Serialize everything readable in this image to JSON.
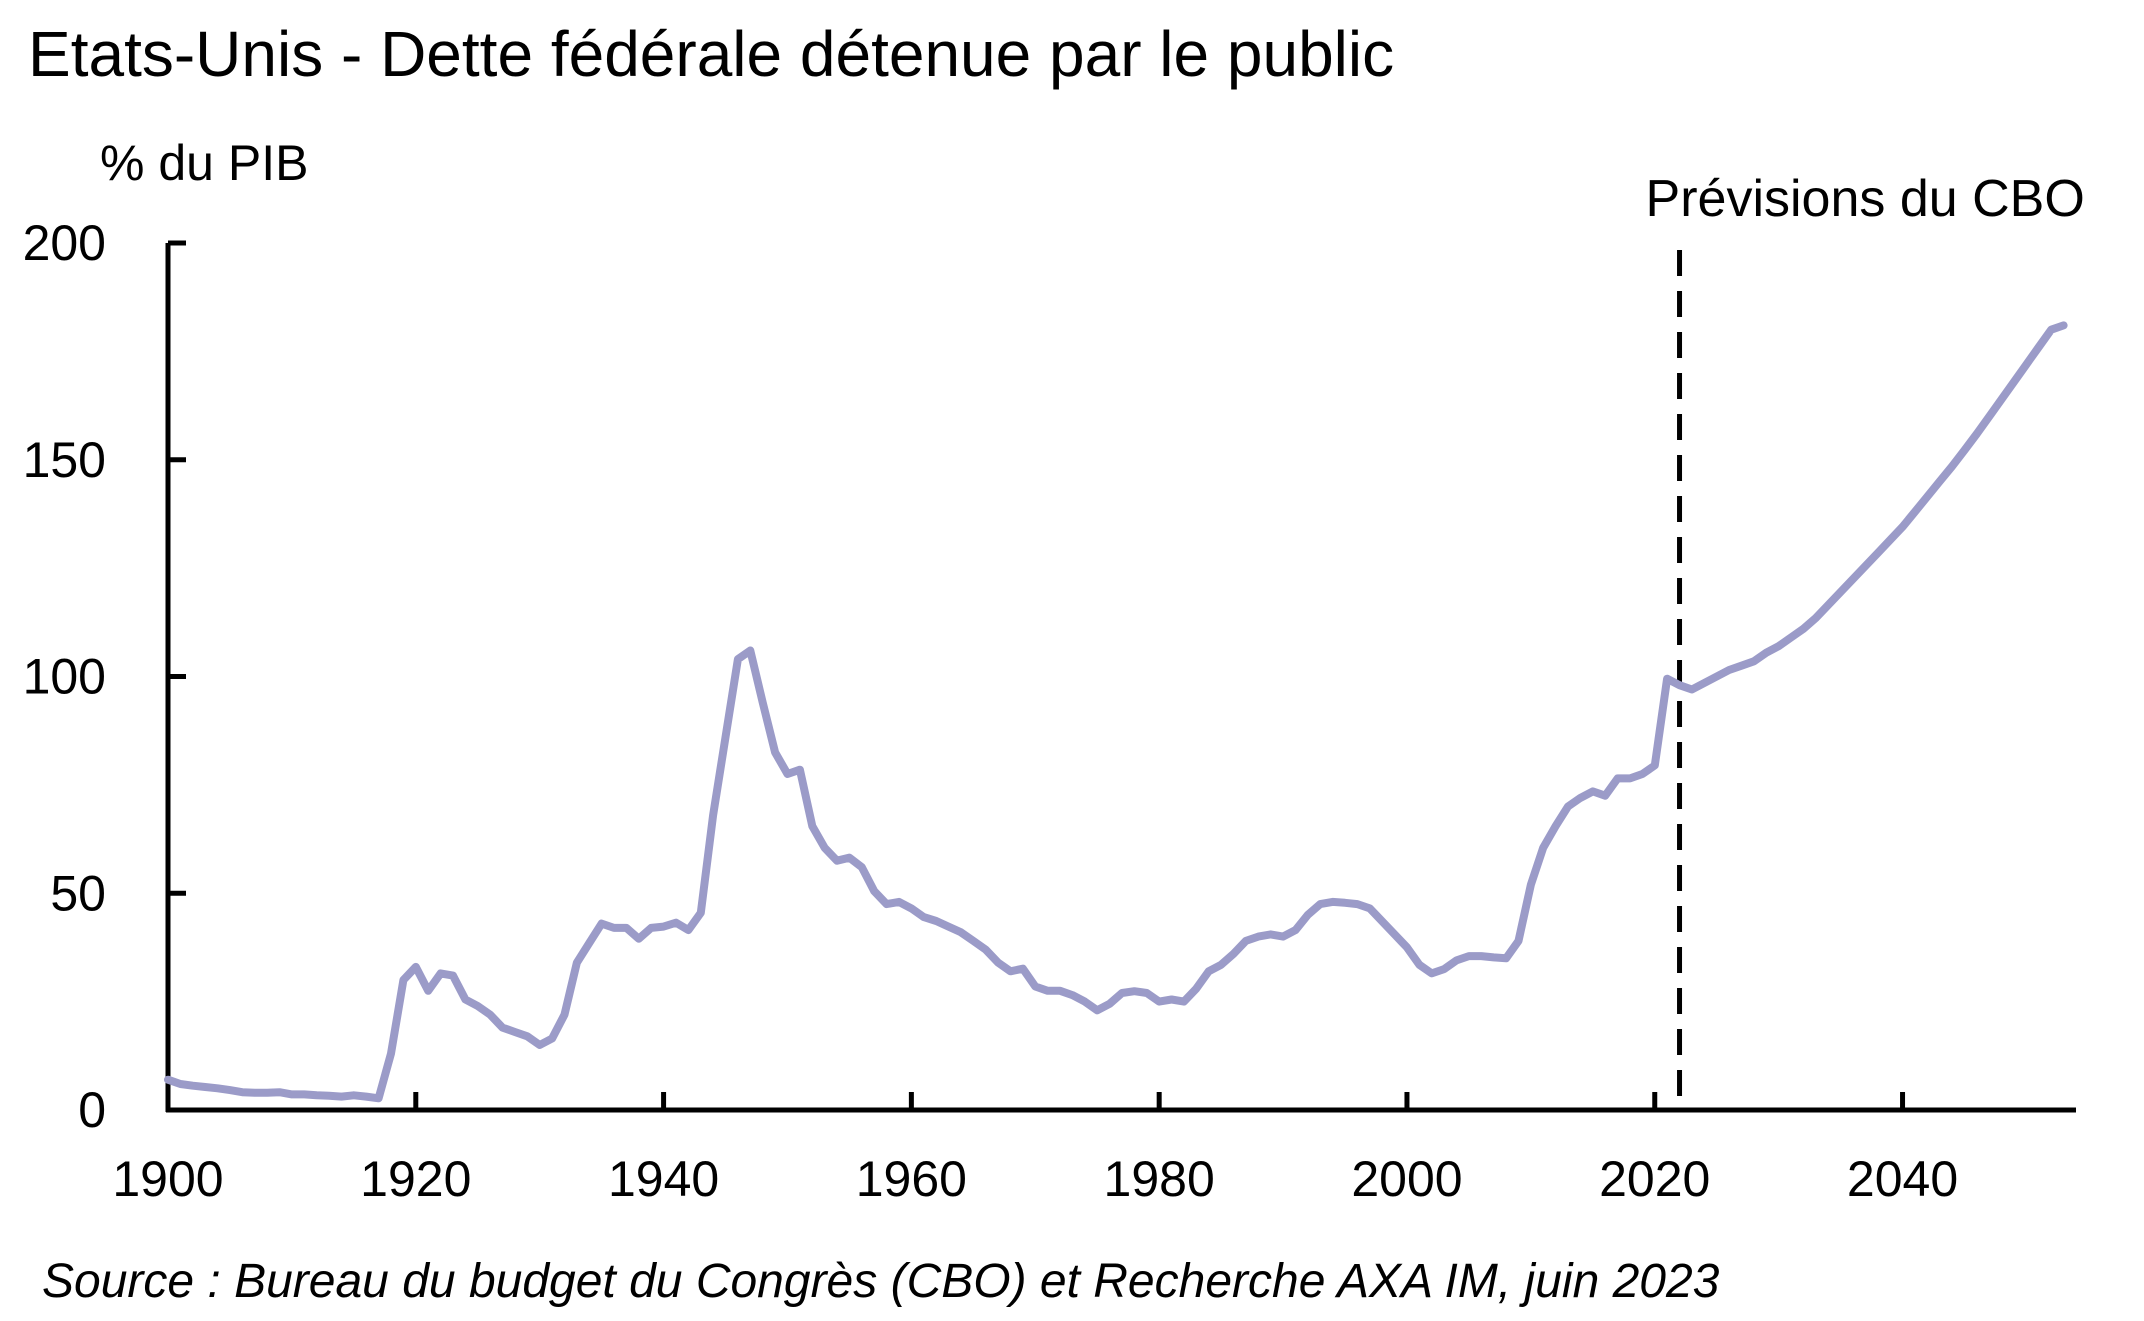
{
  "chart_data": {
    "type": "line",
    "title": "Etats-Unis - Dette fédérale détenue par le public",
    "ylabel": "% du PIB",
    "xlabel": "",
    "source": "Source : Bureau du budget du Congrès (CBO) et Recherche AXA IM, juin 2023",
    "annotation": {
      "label": "Prévisions du CBO",
      "x": 2022
    },
    "xlim": [
      1900,
      2054
    ],
    "ylim": [
      0,
      200
    ],
    "x_ticks": [
      1900,
      1920,
      1940,
      1960,
      1980,
      2000,
      2020,
      2040
    ],
    "y_ticks": [
      0,
      50,
      100,
      150,
      200
    ],
    "grid": false,
    "legend": "none",
    "line_color": "#9B9BC8",
    "series": [
      {
        "points": [
          [
            1900,
            7
          ],
          [
            1901,
            6
          ],
          [
            1902,
            5.6
          ],
          [
            1903,
            5.3
          ],
          [
            1904,
            5
          ],
          [
            1905,
            4.6
          ],
          [
            1906,
            4.1
          ],
          [
            1907,
            4
          ],
          [
            1908,
            4
          ],
          [
            1909,
            4.1
          ],
          [
            1910,
            3.6
          ],
          [
            1911,
            3.6
          ],
          [
            1912,
            3.4
          ],
          [
            1913,
            3.3
          ],
          [
            1914,
            3.1
          ],
          [
            1915,
            3.4
          ],
          [
            1916,
            3.1
          ],
          [
            1917,
            2.7
          ],
          [
            1918,
            13
          ],
          [
            1919,
            30
          ],
          [
            1920,
            33
          ],
          [
            1921,
            27.5
          ],
          [
            1922,
            31.5
          ],
          [
            1923,
            31
          ],
          [
            1924,
            25.5
          ],
          [
            1925,
            24
          ],
          [
            1926,
            22
          ],
          [
            1927,
            19
          ],
          [
            1928,
            18
          ],
          [
            1929,
            17
          ],
          [
            1930,
            15
          ],
          [
            1931,
            16.5
          ],
          [
            1932,
            22
          ],
          [
            1933,
            34
          ],
          [
            1934,
            38.5
          ],
          [
            1935,
            43
          ],
          [
            1936,
            42
          ],
          [
            1937,
            42
          ],
          [
            1938,
            39.5
          ],
          [
            1939,
            42
          ],
          [
            1940,
            42.3
          ],
          [
            1941,
            43.2
          ],
          [
            1942,
            41.5
          ],
          [
            1943,
            45.5
          ],
          [
            1944,
            68
          ],
          [
            1945,
            86
          ],
          [
            1946,
            104
          ],
          [
            1947,
            106
          ],
          [
            1948,
            94
          ],
          [
            1949,
            82.5
          ],
          [
            1950,
            77.5
          ],
          [
            1951,
            78.5
          ],
          [
            1952,
            65.5
          ],
          [
            1953,
            60.5
          ],
          [
            1954,
            57.5
          ],
          [
            1955,
            58.2
          ],
          [
            1956,
            56
          ],
          [
            1957,
            50.5
          ],
          [
            1958,
            47.5
          ],
          [
            1959,
            48
          ],
          [
            1960,
            46.5
          ],
          [
            1961,
            44.5
          ],
          [
            1962,
            43.6
          ],
          [
            1963,
            42.3
          ],
          [
            1964,
            41
          ],
          [
            1965,
            39
          ],
          [
            1966,
            37
          ],
          [
            1967,
            34
          ],
          [
            1968,
            32
          ],
          [
            1969,
            32.6
          ],
          [
            1970,
            28.5
          ],
          [
            1971,
            27.5
          ],
          [
            1972,
            27.5
          ],
          [
            1973,
            26.5
          ],
          [
            1974,
            25
          ],
          [
            1975,
            23
          ],
          [
            1976,
            24.5
          ],
          [
            1977,
            27
          ],
          [
            1978,
            27.4
          ],
          [
            1979,
            27
          ],
          [
            1980,
            25
          ],
          [
            1981,
            25.5
          ],
          [
            1982,
            25
          ],
          [
            1983,
            28
          ],
          [
            1984,
            32
          ],
          [
            1985,
            33.5
          ],
          [
            1986,
            36
          ],
          [
            1987,
            39
          ],
          [
            1988,
            40
          ],
          [
            1989,
            40.5
          ],
          [
            1990,
            40
          ],
          [
            1991,
            41.5
          ],
          [
            1992,
            45
          ],
          [
            1993,
            47.5
          ],
          [
            1994,
            48
          ],
          [
            1995,
            47.8
          ],
          [
            1996,
            47.5
          ],
          [
            1997,
            46.5
          ],
          [
            1998,
            43.5
          ],
          [
            1999,
            40.5
          ],
          [
            2000,
            37.5
          ],
          [
            2001,
            33.5
          ],
          [
            2002,
            31.5
          ],
          [
            2003,
            32.5
          ],
          [
            2004,
            34.5
          ],
          [
            2005,
            35.5
          ],
          [
            2006,
            35.5
          ],
          [
            2007,
            35.2
          ],
          [
            2008,
            35
          ],
          [
            2009,
            39
          ],
          [
            2010,
            52
          ],
          [
            2011,
            60.5
          ],
          [
            2012,
            65.5
          ],
          [
            2013,
            70
          ],
          [
            2014,
            72
          ],
          [
            2015,
            73.5
          ],
          [
            2016,
            72.5
          ],
          [
            2017,
            76.5
          ],
          [
            2018,
            76.5
          ],
          [
            2019,
            77.5
          ],
          [
            2020,
            79.5
          ],
          [
            2021,
            99.5
          ],
          [
            2022,
            98
          ],
          [
            2023,
            97
          ],
          [
            2024,
            98.5
          ],
          [
            2025,
            100
          ],
          [
            2026,
            101.5
          ],
          [
            2027,
            102.5
          ],
          [
            2028,
            103.5
          ],
          [
            2029,
            105.5
          ],
          [
            2030,
            107
          ],
          [
            2031,
            109
          ],
          [
            2032,
            111
          ],
          [
            2033,
            113.5
          ],
          [
            2034,
            116.5
          ],
          [
            2035,
            119.5
          ],
          [
            2036,
            122.5
          ],
          [
            2037,
            125.5
          ],
          [
            2038,
            128.5
          ],
          [
            2039,
            131.5
          ],
          [
            2040,
            134.5
          ],
          [
            2041,
            138
          ],
          [
            2042,
            141.5
          ],
          [
            2043,
            145
          ],
          [
            2044,
            148.5
          ],
          [
            2045,
            152.2
          ],
          [
            2046,
            156
          ],
          [
            2047,
            160
          ],
          [
            2048,
            164
          ],
          [
            2049,
            168
          ],
          [
            2050,
            172
          ],
          [
            2051,
            176
          ],
          [
            2052,
            180
          ],
          [
            2053,
            181
          ]
        ]
      }
    ]
  }
}
